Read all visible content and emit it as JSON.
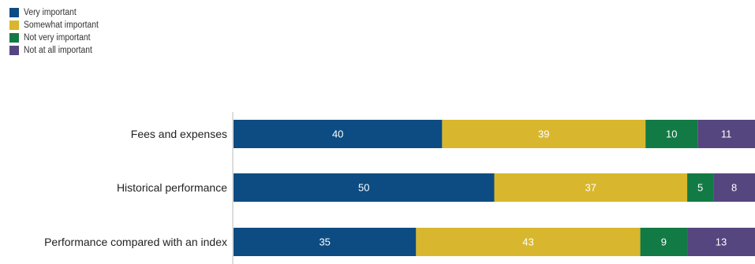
{
  "chart_data": {
    "type": "bar",
    "orientation": "horizontal",
    "stacked": true,
    "title": "",
    "xlabel": "",
    "ylabel": "",
    "xlim": [
      0,
      100
    ],
    "grid": false,
    "legend_position": "top-left",
    "categories": [
      "Fees and expenses",
      "Historical performance",
      "Performance compared with an index"
    ],
    "series": [
      {
        "name": "Very important",
        "color": "#0d4c82",
        "values": [
          40,
          50,
          35
        ]
      },
      {
        "name": "Somewhat important",
        "color": "#d8b72e",
        "values": [
          39,
          37,
          43
        ]
      },
      {
        "name": "Not very important",
        "color": "#127a44",
        "values": [
          10,
          5,
          9
        ]
      },
      {
        "name": "Not at all important",
        "color": "#55467f",
        "values": [
          11,
          8,
          13
        ]
      }
    ]
  }
}
